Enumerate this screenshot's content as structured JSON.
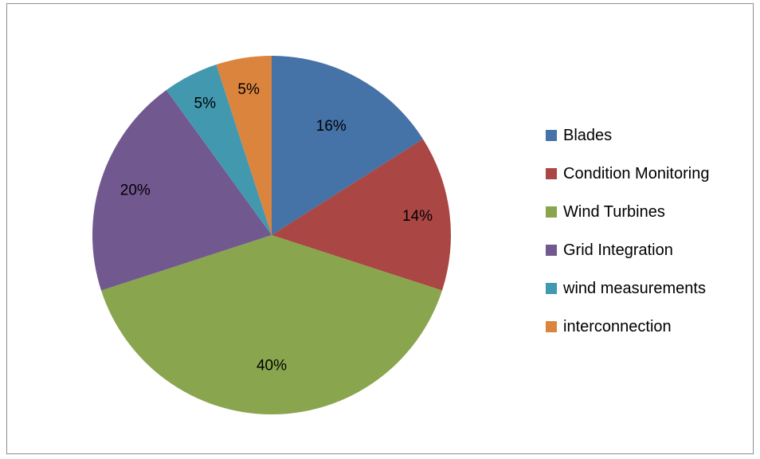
{
  "chart_data": {
    "type": "pie",
    "title": "",
    "legend_position": "right",
    "slices": [
      {
        "label": "Blades",
        "value": 16,
        "value_label": "16%",
        "color": "#4572A7"
      },
      {
        "label": "Condition Monitoring",
        "value": 14,
        "value_label": "14%",
        "color": "#AA4643"
      },
      {
        "label": "Wind Turbines",
        "value": 40,
        "value_label": "40%",
        "color": "#89A54E"
      },
      {
        "label": "Grid Integration",
        "value": 20,
        "value_label": "20%",
        "color": "#71588F"
      },
      {
        "label": "wind measurements",
        "value": 5,
        "value_label": "5%",
        "color": "#4198AF"
      },
      {
        "label": "interconnection",
        "value": 5,
        "value_label": "5%",
        "color": "#DB843D"
      }
    ]
  }
}
